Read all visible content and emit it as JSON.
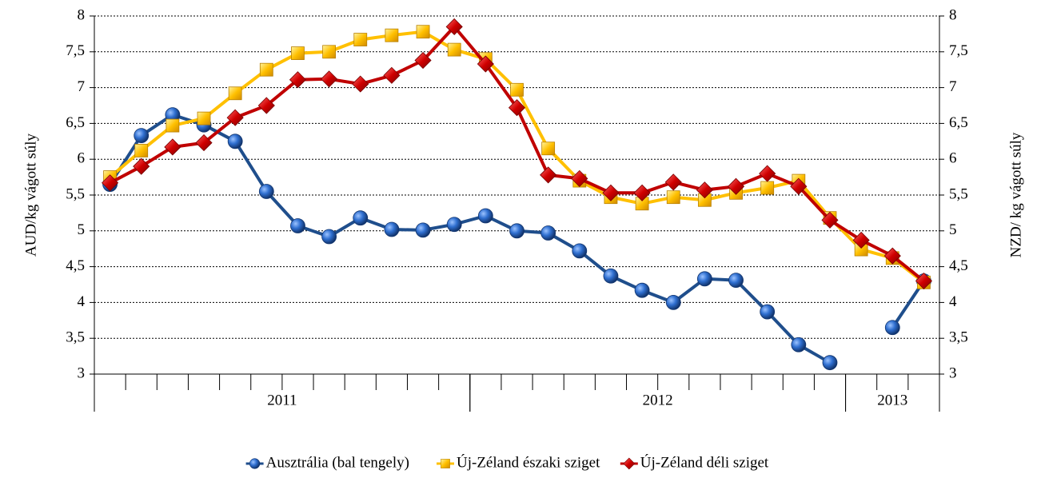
{
  "chart_data": {
    "type": "line",
    "y_label": "AUD/kg  vágott súly",
    "y2_label": "NZD/ kg vágott súly",
    "categories": [
      null,
      null,
      null,
      null,
      null,
      null,
      null,
      null,
      null,
      null,
      null,
      null,
      null,
      null,
      null,
      null,
      null,
      null,
      null,
      null,
      null,
      null,
      null,
      null,
      null,
      null,
      null
    ],
    "x_groups": [
      {
        "label": "2011",
        "count": 12
      },
      {
        "label": "2012",
        "count": 12
      },
      {
        "label": "2013",
        "count": 3
      }
    ],
    "ylim": [
      3,
      8
    ],
    "yticks": [
      3,
      {
        "value": 3.5,
        "label": "3,5"
      },
      4,
      {
        "value": 4.5,
        "label": "4,5"
      },
      5,
      {
        "value": 5.5,
        "label": "5,5"
      },
      6,
      {
        "value": 6.5,
        "label": "6,5"
      },
      7,
      {
        "value": 7.5,
        "label": "7,5"
      },
      8
    ],
    "y2lim": [
      3,
      8
    ],
    "y2ticks": [
      3,
      {
        "value": 3.5,
        "label": "3,5"
      },
      4,
      {
        "value": 4.5,
        "label": "4,5"
      },
      5,
      {
        "value": 5.5,
        "label": "5,5"
      },
      6,
      {
        "value": 6.5,
        "label": "6,5"
      },
      7,
      {
        "value": 7.5,
        "label": "7,5"
      },
      8
    ],
    "grid": true,
    "legend": "bottom",
    "series": [
      {
        "name": "Ausztrália (bal tengely)",
        "color": "#1f4e8c",
        "marker": "circle",
        "values": [
          5.65,
          6.33,
          6.62,
          6.48,
          6.25,
          5.55,
          5.07,
          4.92,
          5.18,
          5.02,
          5.01,
          5.09,
          5.21,
          5.0,
          4.97,
          4.72,
          4.37,
          4.17,
          4.0,
          4.33,
          4.31,
          3.87,
          3.41,
          3.16,
          null,
          3.65,
          4.3
        ]
      },
      {
        "name": "Új-Zéland északi sziget",
        "color": "#ffc000",
        "marker": "square",
        "axis": "y2",
        "values": [
          5.75,
          6.12,
          6.47,
          6.57,
          6.92,
          7.25,
          7.48,
          7.5,
          7.67,
          7.73,
          7.78,
          7.53,
          7.4,
          6.97,
          6.15,
          5.7,
          5.47,
          5.38,
          5.47,
          5.43,
          5.53,
          5.6,
          5.7,
          5.18,
          4.74,
          4.62,
          4.28
        ]
      },
      {
        "name": "Új-Zéland déli sziget",
        "color": "#c00000",
        "marker": "diamond",
        "axis": "y2",
        "values": [
          5.67,
          5.9,
          6.17,
          6.23,
          6.58,
          6.75,
          7.11,
          7.12,
          7.05,
          7.17,
          7.38,
          7.85,
          7.33,
          6.72,
          5.78,
          5.73,
          5.53,
          5.53,
          5.68,
          5.57,
          5.62,
          5.8,
          5.62,
          5.15,
          4.87,
          4.65,
          4.3
        ]
      }
    ]
  }
}
